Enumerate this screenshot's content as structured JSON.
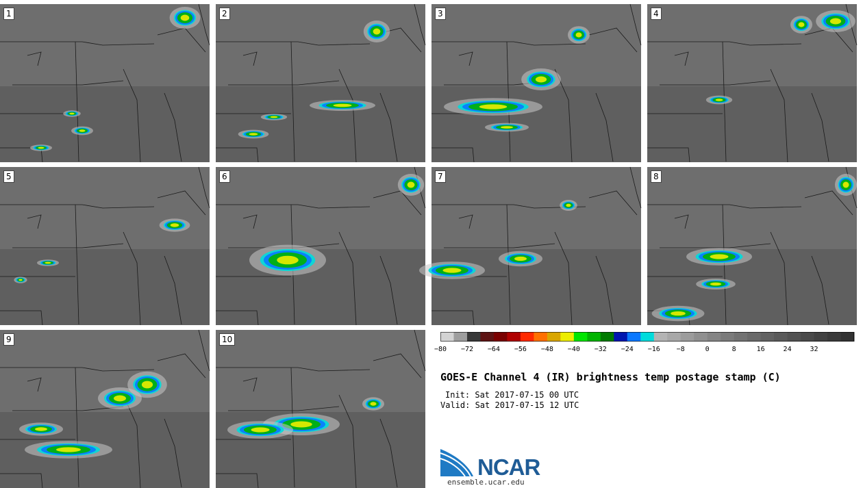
{
  "panels": [
    {
      "label": "1"
    },
    {
      "label": "2"
    },
    {
      "label": "3"
    },
    {
      "label": "4"
    },
    {
      "label": "5"
    },
    {
      "label": "6"
    },
    {
      "label": "7"
    },
    {
      "label": "8"
    },
    {
      "label": "9"
    },
    {
      "label": "10"
    }
  ],
  "colorbar": {
    "colors": [
      "#d3d3d3",
      "#9e9e9e",
      "#383838",
      "#5e1414",
      "#7a0000",
      "#b00000",
      "#ff2a00",
      "#ff7000",
      "#d9a600",
      "#eded00",
      "#00e600",
      "#00b400",
      "#007a00",
      "#0016b0",
      "#0a78ff",
      "#00dcdc",
      "#b4b4b4",
      "#a8a8a8",
      "#9c9c9c",
      "#909090",
      "#858585",
      "#7b7b7b",
      "#727272",
      "#6a6a6a",
      "#626262",
      "#5a5a5a",
      "#525252",
      "#4a4a4a",
      "#424242",
      "#3a3a3a",
      "#323232"
    ],
    "tick_labels": [
      "−80",
      "−72",
      "−64",
      "−56",
      "−48",
      "−40",
      "−32",
      "−24",
      "−16",
      "−8",
      "0",
      "8",
      "16",
      "24",
      "32"
    ]
  },
  "title": "GOES-E Channel 4 (IR) brightness temp postage stamp (C)",
  "init": "Init: Sat 2017-07-15 00 UTC",
  "valid": "Valid: Sat 2017-07-15 12 UTC",
  "logo_text": "NCAR",
  "url": "ensemble.ucar.edu"
}
